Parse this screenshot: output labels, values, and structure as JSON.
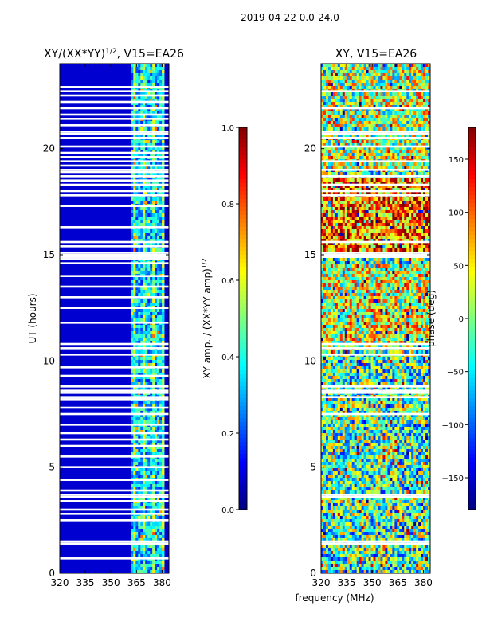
{
  "figure_title": "2019-04-22 0.0-24.0",
  "xlabel": "frequency (MHz)",
  "chart_data": [
    {
      "type": "heatmap",
      "title_prefix": "XY/(XX*YY)",
      "title_exp": "1/2",
      "title_suffix": ", V15=EA26",
      "ylabel": "UT (hours)",
      "xlim": [
        320,
        384
      ],
      "ylim": [
        0,
        24
      ],
      "xticks": [
        "320",
        "335",
        "350",
        "365",
        "380"
      ],
      "xtick_values": [
        320,
        335,
        350,
        365,
        380
      ],
      "yticks": [
        "0",
        "5",
        "10",
        "15",
        "20"
      ],
      "ytick_values": [
        0,
        5,
        10,
        15,
        20
      ],
      "colorbar": {
        "label_prefix": "XY amp. / (XX*YY amp)",
        "label_exp": "1/2",
        "range": [
          0.0,
          1.0
        ],
        "ticks": [
          "0.0",
          "0.2",
          "0.4",
          "0.6",
          "0.8",
          "1.0"
        ],
        "tick_values": [
          0.0,
          0.2,
          0.4,
          0.6,
          0.8,
          1.0
        ]
      },
      "flagged_hours": [
        0.7,
        1.4,
        1.5,
        2.5,
        2.8,
        3.0,
        3.4,
        3.6,
        3.7,
        3.9,
        4.4,
        5.0,
        5.5,
        6.0,
        6.3,
        6.6,
        7.0,
        7.5,
        7.8,
        8.2,
        8.3,
        8.5,
        8.6,
        8.8,
        9.3,
        9.7,
        10.3,
        10.6,
        10.8,
        11.8,
        12.5,
        13.0,
        13.5,
        14.0,
        14.6,
        14.8,
        14.9,
        15.0,
        15.1,
        15.4,
        15.6,
        16.3,
        17.3,
        17.8,
        18.0,
        18.3,
        18.5,
        18.7,
        18.9,
        19.0,
        19.2,
        19.4,
        19.6,
        19.8,
        20.1,
        20.5,
        20.7,
        20.8,
        21.1,
        21.4,
        21.6,
        21.9,
        22.2,
        22.5,
        22.7,
        22.9
      ]
    },
    {
      "type": "heatmap",
      "title": "XY, V15=EA26",
      "ylabel": "phase (deg)",
      "xlim": [
        320,
        384
      ],
      "ylim": [
        0,
        24
      ],
      "xticks": [
        "320",
        "335",
        "350",
        "365",
        "380"
      ],
      "xtick_values": [
        320,
        335,
        350,
        365,
        380
      ],
      "yticks": [
        "0",
        "5",
        "10",
        "15",
        "20"
      ],
      "ytick_values": [
        0,
        5,
        10,
        15,
        20
      ],
      "colorbar": {
        "range": [
          -180,
          180
        ],
        "ticks": [
          "−150",
          "−100",
          "−50",
          "0",
          "50",
          "100",
          "150"
        ],
        "tick_values": [
          -150,
          -100,
          -50,
          0,
          50,
          100,
          150
        ]
      },
      "flagged_hours": [
        1.4,
        1.5,
        3.6,
        3.7,
        7.5,
        8.3,
        8.5,
        8.6,
        8.8,
        10.3,
        10.6,
        10.8,
        14.9,
        15.0,
        15.1,
        15.6,
        17.8,
        18.0,
        18.3,
        18.7,
        19.0,
        19.4,
        20.1,
        20.5,
        20.7,
        20.8,
        21.9,
        22.7
      ]
    }
  ]
}
